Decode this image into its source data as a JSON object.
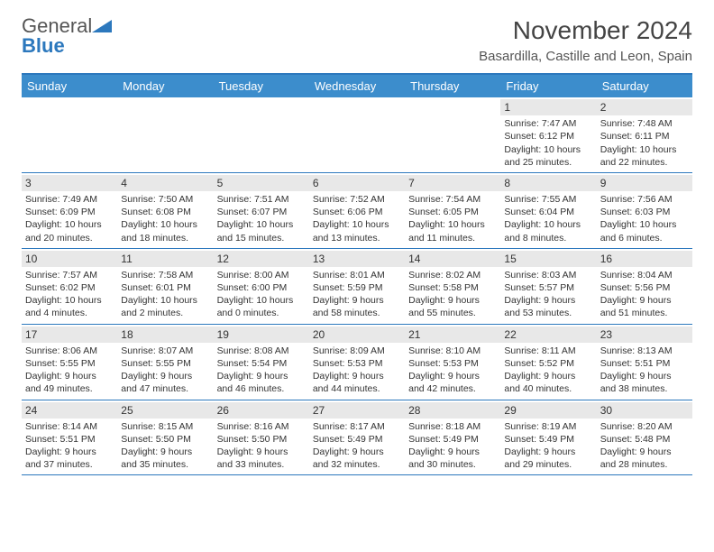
{
  "logo": {
    "brand_a": "General",
    "brand_b": "Blue"
  },
  "header": {
    "title": "November 2024",
    "location": "Basardilla, Castille and Leon, Spain"
  },
  "colors": {
    "accent": "#2c78bd",
    "header_bg": "#3c8dcc",
    "daynum_bg": "#e8e8e8",
    "text": "#333333"
  },
  "weekdays": [
    "Sunday",
    "Monday",
    "Tuesday",
    "Wednesday",
    "Thursday",
    "Friday",
    "Saturday"
  ],
  "weeks": [
    [
      {
        "n": "",
        "sr": "",
        "ss": "",
        "dl": ""
      },
      {
        "n": "",
        "sr": "",
        "ss": "",
        "dl": ""
      },
      {
        "n": "",
        "sr": "",
        "ss": "",
        "dl": ""
      },
      {
        "n": "",
        "sr": "",
        "ss": "",
        "dl": ""
      },
      {
        "n": "",
        "sr": "",
        "ss": "",
        "dl": ""
      },
      {
        "n": "1",
        "sr": "Sunrise: 7:47 AM",
        "ss": "Sunset: 6:12 PM",
        "dl": "Daylight: 10 hours and 25 minutes."
      },
      {
        "n": "2",
        "sr": "Sunrise: 7:48 AM",
        "ss": "Sunset: 6:11 PM",
        "dl": "Daylight: 10 hours and 22 minutes."
      }
    ],
    [
      {
        "n": "3",
        "sr": "Sunrise: 7:49 AM",
        "ss": "Sunset: 6:09 PM",
        "dl": "Daylight: 10 hours and 20 minutes."
      },
      {
        "n": "4",
        "sr": "Sunrise: 7:50 AM",
        "ss": "Sunset: 6:08 PM",
        "dl": "Daylight: 10 hours and 18 minutes."
      },
      {
        "n": "5",
        "sr": "Sunrise: 7:51 AM",
        "ss": "Sunset: 6:07 PM",
        "dl": "Daylight: 10 hours and 15 minutes."
      },
      {
        "n": "6",
        "sr": "Sunrise: 7:52 AM",
        "ss": "Sunset: 6:06 PM",
        "dl": "Daylight: 10 hours and 13 minutes."
      },
      {
        "n": "7",
        "sr": "Sunrise: 7:54 AM",
        "ss": "Sunset: 6:05 PM",
        "dl": "Daylight: 10 hours and 11 minutes."
      },
      {
        "n": "8",
        "sr": "Sunrise: 7:55 AM",
        "ss": "Sunset: 6:04 PM",
        "dl": "Daylight: 10 hours and 8 minutes."
      },
      {
        "n": "9",
        "sr": "Sunrise: 7:56 AM",
        "ss": "Sunset: 6:03 PM",
        "dl": "Daylight: 10 hours and 6 minutes."
      }
    ],
    [
      {
        "n": "10",
        "sr": "Sunrise: 7:57 AM",
        "ss": "Sunset: 6:02 PM",
        "dl": "Daylight: 10 hours and 4 minutes."
      },
      {
        "n": "11",
        "sr": "Sunrise: 7:58 AM",
        "ss": "Sunset: 6:01 PM",
        "dl": "Daylight: 10 hours and 2 minutes."
      },
      {
        "n": "12",
        "sr": "Sunrise: 8:00 AM",
        "ss": "Sunset: 6:00 PM",
        "dl": "Daylight: 10 hours and 0 minutes."
      },
      {
        "n": "13",
        "sr": "Sunrise: 8:01 AM",
        "ss": "Sunset: 5:59 PM",
        "dl": "Daylight: 9 hours and 58 minutes."
      },
      {
        "n": "14",
        "sr": "Sunrise: 8:02 AM",
        "ss": "Sunset: 5:58 PM",
        "dl": "Daylight: 9 hours and 55 minutes."
      },
      {
        "n": "15",
        "sr": "Sunrise: 8:03 AM",
        "ss": "Sunset: 5:57 PM",
        "dl": "Daylight: 9 hours and 53 minutes."
      },
      {
        "n": "16",
        "sr": "Sunrise: 8:04 AM",
        "ss": "Sunset: 5:56 PM",
        "dl": "Daylight: 9 hours and 51 minutes."
      }
    ],
    [
      {
        "n": "17",
        "sr": "Sunrise: 8:06 AM",
        "ss": "Sunset: 5:55 PM",
        "dl": "Daylight: 9 hours and 49 minutes."
      },
      {
        "n": "18",
        "sr": "Sunrise: 8:07 AM",
        "ss": "Sunset: 5:55 PM",
        "dl": "Daylight: 9 hours and 47 minutes."
      },
      {
        "n": "19",
        "sr": "Sunrise: 8:08 AM",
        "ss": "Sunset: 5:54 PM",
        "dl": "Daylight: 9 hours and 46 minutes."
      },
      {
        "n": "20",
        "sr": "Sunrise: 8:09 AM",
        "ss": "Sunset: 5:53 PM",
        "dl": "Daylight: 9 hours and 44 minutes."
      },
      {
        "n": "21",
        "sr": "Sunrise: 8:10 AM",
        "ss": "Sunset: 5:53 PM",
        "dl": "Daylight: 9 hours and 42 minutes."
      },
      {
        "n": "22",
        "sr": "Sunrise: 8:11 AM",
        "ss": "Sunset: 5:52 PM",
        "dl": "Daylight: 9 hours and 40 minutes."
      },
      {
        "n": "23",
        "sr": "Sunrise: 8:13 AM",
        "ss": "Sunset: 5:51 PM",
        "dl": "Daylight: 9 hours and 38 minutes."
      }
    ],
    [
      {
        "n": "24",
        "sr": "Sunrise: 8:14 AM",
        "ss": "Sunset: 5:51 PM",
        "dl": "Daylight: 9 hours and 37 minutes."
      },
      {
        "n": "25",
        "sr": "Sunrise: 8:15 AM",
        "ss": "Sunset: 5:50 PM",
        "dl": "Daylight: 9 hours and 35 minutes."
      },
      {
        "n": "26",
        "sr": "Sunrise: 8:16 AM",
        "ss": "Sunset: 5:50 PM",
        "dl": "Daylight: 9 hours and 33 minutes."
      },
      {
        "n": "27",
        "sr": "Sunrise: 8:17 AM",
        "ss": "Sunset: 5:49 PM",
        "dl": "Daylight: 9 hours and 32 minutes."
      },
      {
        "n": "28",
        "sr": "Sunrise: 8:18 AM",
        "ss": "Sunset: 5:49 PM",
        "dl": "Daylight: 9 hours and 30 minutes."
      },
      {
        "n": "29",
        "sr": "Sunrise: 8:19 AM",
        "ss": "Sunset: 5:49 PM",
        "dl": "Daylight: 9 hours and 29 minutes."
      },
      {
        "n": "30",
        "sr": "Sunrise: 8:20 AM",
        "ss": "Sunset: 5:48 PM",
        "dl": "Daylight: 9 hours and 28 minutes."
      }
    ]
  ]
}
